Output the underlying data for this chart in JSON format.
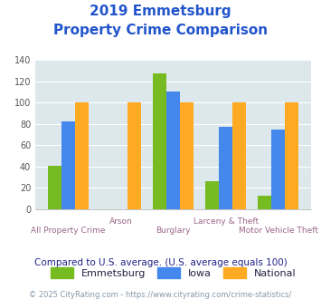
{
  "title_line1": "2019 Emmetsburg",
  "title_line2": "Property Crime Comparison",
  "categories": [
    "All Property Crime",
    "Arson",
    "Burglary",
    "Larceny & Theft",
    "Motor Vehicle Theft"
  ],
  "emmetsburg": [
    41,
    0,
    127,
    26,
    13
  ],
  "iowa": [
    82,
    0,
    110,
    77,
    75
  ],
  "national": [
    100,
    100,
    100,
    100,
    100
  ],
  "color_emmetsburg": "#77bb22",
  "color_iowa": "#4488ee",
  "color_national": "#ffaa22",
  "ylim": [
    0,
    140
  ],
  "yticks": [
    0,
    20,
    40,
    60,
    80,
    100,
    120,
    140
  ],
  "background_color": "#dce8ec",
  "note": "Compared to U.S. average. (U.S. average equals 100)",
  "footer": "© 2025 CityRating.com - https://www.cityrating.com/crime-statistics/",
  "title_color": "#2255cc",
  "xlabel_color": "#996688",
  "note_color": "#222288",
  "footer_color": "#8899aa",
  "legend_label_emmetsburg": "Emmetsburg",
  "legend_label_iowa": "Iowa",
  "legend_label_national": "National",
  "legend_text_color": "#222244"
}
